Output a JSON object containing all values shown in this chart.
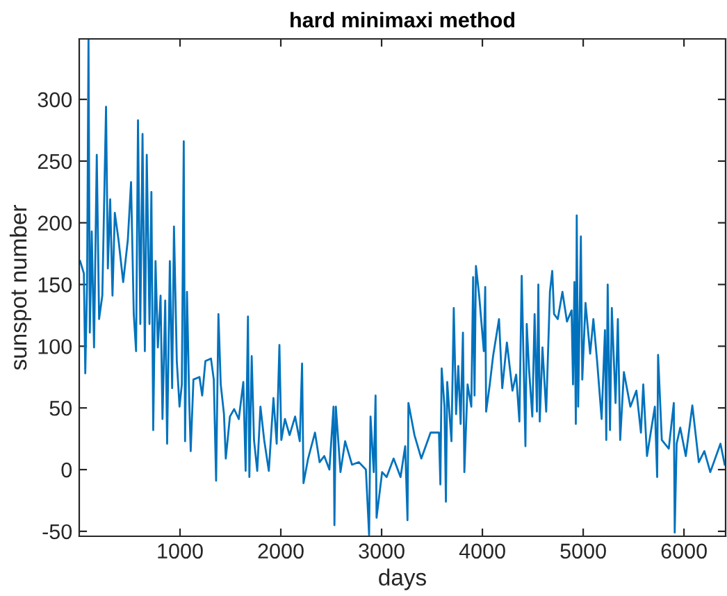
{
  "chart_data": {
    "type": "line",
    "title": "hard minimaxi method",
    "xlabel": "days",
    "ylabel": "sunspot number",
    "xlim": [
      0,
      6413
    ],
    "ylim": [
      -54,
      349
    ],
    "xticks": [
      1000,
      2000,
      3000,
      4000,
      5000,
      6000
    ],
    "yticks": [
      -50,
      0,
      50,
      100,
      150,
      200,
      250,
      300
    ],
    "grid": false,
    "series": [
      {
        "color": "#0072bd",
        "x": [
          9,
          46,
          60,
          78,
          92,
          105,
          124,
          147,
          174,
          197,
          229,
          266,
          284,
          307,
          330,
          353,
          390,
          436,
          482,
          514,
          541,
          564,
          583,
          606,
          628,
          651,
          670,
          697,
          716,
          734,
          757,
          780,
          807,
          826,
          853,
          872,
          899,
          922,
          940,
          968,
          995,
          1018,
          1037,
          1050,
          1069,
          1092,
          1106,
          1133,
          1193,
          1220,
          1252,
          1307,
          1335,
          1358,
          1381,
          1404,
          1436,
          1454,
          1495,
          1537,
          1583,
          1628,
          1651,
          1674,
          1688,
          1711,
          1734,
          1766,
          1798,
          1835,
          1881,
          1927,
          1959,
          1986,
          2005,
          2041,
          2087,
          2142,
          2188,
          2211,
          2225,
          2271,
          2339,
          2385,
          2431,
          2482,
          2523,
          2532,
          2546,
          2592,
          2638,
          2706,
          2775,
          2844,
          2876,
          2890,
          2922,
          2940,
          2950,
          3005,
          3050,
          3119,
          3188,
          3234,
          3257,
          3266,
          3326,
          3394,
          3486,
          3569,
          3583,
          3596,
          3624,
          3638,
          3651,
          3693,
          3716,
          3739,
          3761,
          3784,
          3807,
          3821,
          3853,
          3890,
          3908,
          3922,
          3936,
          3968,
          4014,
          4028,
          4037,
          4073,
          4106,
          4165,
          4197,
          4243,
          4298,
          4335,
          4367,
          4390,
          4427,
          4440,
          4463,
          4495,
          4518,
          4541,
          4555,
          4569,
          4596,
          4633,
          4670,
          4693,
          4711,
          4748,
          4794,
          4839,
          4885,
          4899,
          4913,
          4927,
          4936,
          4950,
          4977,
          4991,
          5023,
          5069,
          5101,
          5138,
          5183,
          5216,
          5229,
          5243,
          5266,
          5284,
          5321,
          5344,
          5367,
          5404,
          5468,
          5528,
          5573,
          5596,
          5633,
          5711,
          5734,
          5743,
          5780,
          5849,
          5899,
          5908,
          5927,
          5963,
          6018,
          6083,
          6147,
          6202,
          6261,
          6362,
          6404
        ],
        "values": [
          169,
          159,
          78,
          152,
          349,
          111,
          193,
          99,
          255,
          122,
          141,
          294,
          163,
          219,
          141,
          208,
          186,
          152,
          186,
          233,
          126,
          96,
          283,
          118,
          272,
          96,
          255,
          118,
          225,
          32,
          169,
          99,
          141,
          41,
          137,
          21,
          169,
          66,
          197,
          88,
          51,
          69,
          266,
          23,
          144,
          54,
          15,
          73,
          75,
          60,
          88,
          90,
          73,
          -9,
          126,
          69,
          45,
          9,
          43,
          49,
          41,
          71,
          -1,
          124,
          -6,
          92,
          24,
          -1,
          51,
          24,
          -1,
          58,
          21,
          101,
          24,
          41,
          28,
          43,
          23,
          86,
          -11,
          9,
          30,
          6,
          11,
          0,
          51,
          -45,
          51,
          -2,
          23,
          4,
          6,
          0,
          -53,
          43,
          -2,
          60,
          -39,
          -2,
          -6,
          9,
          -6,
          19,
          -41,
          54,
          28,
          9,
          30,
          30,
          -12,
          82,
          51,
          -26,
          71,
          23,
          131,
          45,
          84,
          37,
          111,
          -2,
          69,
          51,
          156,
          60,
          165,
          141,
          96,
          148,
          47,
          69,
          92,
          122,
          66,
          103,
          64,
          77,
          39,
          157,
          19,
          118,
          81,
          43,
          126,
          47,
          150,
          39,
          99,
          47,
          144,
          161,
          126,
          122,
          144,
          120,
          129,
          69,
          152,
          37,
          206,
          51,
          189,
          73,
          135,
          94,
          122,
          88,
          41,
          113,
          24,
          150,
          32,
          131,
          54,
          122,
          24,
          79,
          51,
          64,
          30,
          69,
          11,
          51,
          -6,
          93,
          24,
          17,
          54,
          -51,
          21,
          34,
          11,
          52,
          6,
          15,
          -2,
          21,
          4
        ]
      }
    ]
  }
}
